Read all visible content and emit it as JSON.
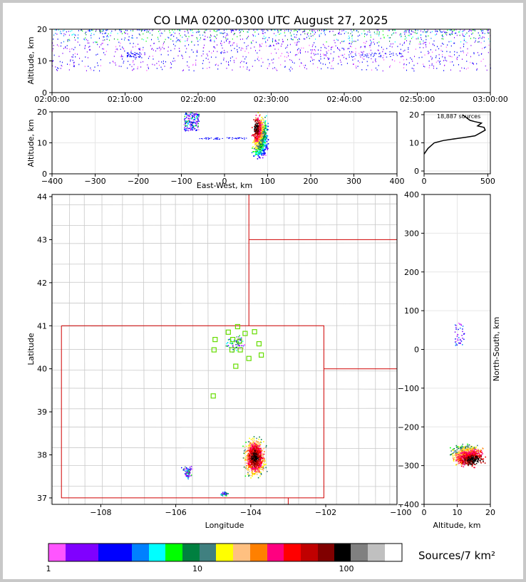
{
  "chart_data": [
    {
      "id": "time-height",
      "type": "scatter",
      "title": "CO LMA 0200-0300 UTC August 27, 2025",
      "ylabel": "Altitude, km",
      "xlim": [
        "02:00:00",
        "03:00:00"
      ],
      "ylim": [
        0,
        20
      ],
      "x_ticks": [
        "02:00:00",
        "02:10:00",
        "02:20:00",
        "02:30:00",
        "02:40:00",
        "02:50:00",
        "03:00:00"
      ],
      "y_ticks": [
        "0",
        "10",
        "20"
      ],
      "description_values": {
        "bulk_altitude_km": [
          6,
          20
        ],
        "horizontal_flash_altitude_km": 11
      }
    },
    {
      "id": "east-west-altitude",
      "type": "scatter",
      "xlabel": "East-West, km",
      "ylabel": "Altitude, km",
      "xlim": [
        -400,
        400
      ],
      "ylim": [
        0,
        20
      ],
      "x_ticks": [
        "−400",
        "−300",
        "−200",
        "−100",
        "0",
        "100",
        "200",
        "300",
        "400"
      ],
      "y_ticks": [
        "0",
        "10",
        "20"
      ],
      "clusters_ew_km": [
        [
          -95,
          -60
        ],
        [
          65,
          100
        ]
      ]
    },
    {
      "id": "altitude-histogram",
      "type": "line",
      "annotation": "18,887 sources",
      "xlim": [
        0,
        520
      ],
      "ylim": [
        -1,
        21
      ],
      "x_ticks": [
        "0",
        "500"
      ],
      "y_ticks": [
        "0",
        "10",
        "20"
      ],
      "x": [
        0,
        30,
        80,
        150,
        250,
        330,
        400,
        440,
        480,
        470,
        420,
        450,
        400,
        360,
        330,
        300
      ],
      "y": [
        6,
        8,
        10,
        10.8,
        11.5,
        12,
        12.5,
        13.5,
        14.5,
        15.5,
        16,
        17,
        17.5,
        18,
        19,
        20
      ]
    },
    {
      "id": "plan-view",
      "type": "scatter",
      "xlabel": "Longitude",
      "ylabel": "Latitude",
      "xlim": [
        -109.3,
        -100.1
      ],
      "ylim": [
        36.85,
        44.05
      ],
      "x_ticks": [
        "−108",
        "−106",
        "−104",
        "−102",
        "−100"
      ],
      "y_ticks": [
        "37",
        "38",
        "39",
        "40",
        "41",
        "42",
        "43",
        "44"
      ],
      "stations_lonlat": [
        [
          -104.6,
          40.85
        ],
        [
          -104.95,
          40.68
        ],
        [
          -104.48,
          40.68
        ],
        [
          -104.35,
          40.98
        ],
        [
          -104.15,
          40.82
        ],
        [
          -103.9,
          40.86
        ],
        [
          -104.3,
          40.64
        ],
        [
          -103.78,
          40.58
        ],
        [
          -104.98,
          40.44
        ],
        [
          -104.5,
          40.44
        ],
        [
          -104.28,
          40.44
        ],
        [
          -103.72,
          40.32
        ],
        [
          -104.05,
          40.24
        ],
        [
          -104.4,
          40.06
        ],
        [
          -105.0,
          39.37
        ]
      ],
      "storm_center_lonlat": [
        -103.9,
        37.95
      ]
    },
    {
      "id": "altitude-north-south",
      "type": "scatter",
      "xlabel": "Altitude, km",
      "ylabel": "North-South, km",
      "xlim": [
        0,
        20
      ],
      "ylim": [
        -400,
        400
      ],
      "x_ticks": [
        "0",
        "10",
        "20"
      ],
      "y_ticks": [
        "−400",
        "−300",
        "−200",
        "−100",
        "0",
        "100",
        "200",
        "300",
        "400"
      ],
      "storm_ns_km": [
        -290,
        -230
      ]
    }
  ],
  "colorbar": {
    "label": "Sources/7 km²",
    "ticks": [
      "1",
      "10",
      "100"
    ],
    "colors": [
      "#ff55ff",
      "#8000ff",
      "#8000ff",
      "#0000ff",
      "#0000ff",
      "#0080ff",
      "#00ffff",
      "#00ff00",
      "#008040",
      "#408080",
      "#ffff00",
      "#ffc080",
      "#ff8000",
      "#ff0080",
      "#ff0000",
      "#c00000",
      "#800000",
      "#000000",
      "#808080",
      "#c0c0c0",
      "#ffffff"
    ]
  }
}
